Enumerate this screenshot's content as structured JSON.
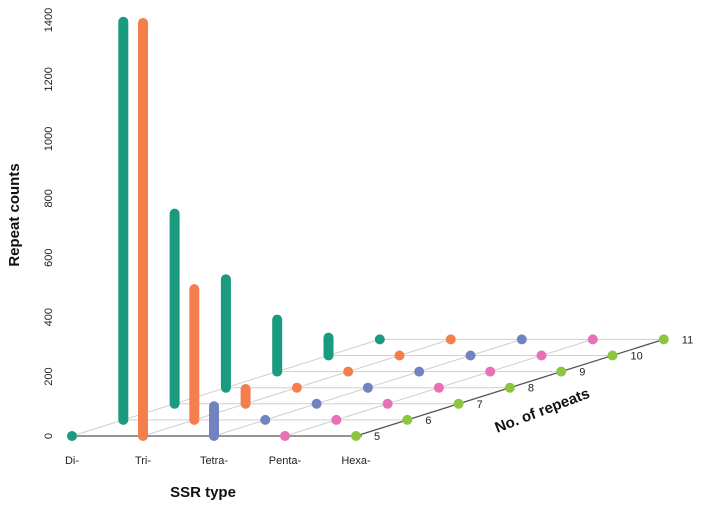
{
  "chart_data": {
    "type": "bar",
    "xlabel": "SSR type",
    "ylabel": "Repeat counts",
    "zlabel": "No. of repeats",
    "categories": [
      "Di-",
      "Tri-",
      "Tetra-",
      "Penta-",
      "Hexa-"
    ],
    "repeats": [
      5,
      6,
      7,
      8,
      9,
      10,
      11
    ],
    "yticks": [
      0,
      200,
      400,
      600,
      800,
      1000,
      1200,
      1400
    ],
    "ylim": [
      0,
      1400
    ],
    "grid": true,
    "colors": {
      "Di-": "#1a9a7e",
      "Tri-": "#f47f4c",
      "Tetra-": "#7382c0",
      "Penta-": "#e870b6",
      "Hexa-": "#8cc63f"
    },
    "bars": [
      {
        "ssr": "Di-",
        "repeat": 5,
        "value": 0
      },
      {
        "ssr": "Di-",
        "repeat": 6,
        "value": 1340
      },
      {
        "ssr": "Di-",
        "repeat": 7,
        "value": 640
      },
      {
        "ssr": "Di-",
        "repeat": 8,
        "value": 365
      },
      {
        "ssr": "Di-",
        "repeat": 9,
        "value": 175
      },
      {
        "ssr": "Di-",
        "repeat": 10,
        "value": 60
      },
      {
        "ssr": "Di-",
        "repeat": 11,
        "value": 0
      },
      {
        "ssr": "Tri-",
        "repeat": 5,
        "value": 1390
      },
      {
        "ssr": "Tri-",
        "repeat": 6,
        "value": 440
      },
      {
        "ssr": "Tri-",
        "repeat": 7,
        "value": 50
      },
      {
        "ssr": "Tri-",
        "repeat": 8,
        "value": 0
      },
      {
        "ssr": "Tri-",
        "repeat": 9,
        "value": 0
      },
      {
        "ssr": "Tri-",
        "repeat": 10,
        "value": 0
      },
      {
        "ssr": "Tri-",
        "repeat": 11,
        "value": 0
      },
      {
        "ssr": "Tetra-",
        "repeat": 5,
        "value": 100
      },
      {
        "ssr": "Tetra-",
        "repeat": 6,
        "value": 0
      },
      {
        "ssr": "Tetra-",
        "repeat": 7,
        "value": 0
      },
      {
        "ssr": "Tetra-",
        "repeat": 8,
        "value": 0
      },
      {
        "ssr": "Tetra-",
        "repeat": 9,
        "value": 0
      },
      {
        "ssr": "Tetra-",
        "repeat": 10,
        "value": 0
      },
      {
        "ssr": "Tetra-",
        "repeat": 11,
        "value": 0
      },
      {
        "ssr": "Penta-",
        "repeat": 5,
        "value": 0
      },
      {
        "ssr": "Penta-",
        "repeat": 6,
        "value": 0
      },
      {
        "ssr": "Penta-",
        "repeat": 7,
        "value": 0
      },
      {
        "ssr": "Penta-",
        "repeat": 8,
        "value": 0
      },
      {
        "ssr": "Penta-",
        "repeat": 9,
        "value": 0
      },
      {
        "ssr": "Penta-",
        "repeat": 10,
        "value": 0
      },
      {
        "ssr": "Penta-",
        "repeat": 11,
        "value": 0
      },
      {
        "ssr": "Hexa-",
        "repeat": 5,
        "value": 0
      },
      {
        "ssr": "Hexa-",
        "repeat": 6,
        "value": 0
      },
      {
        "ssr": "Hexa-",
        "repeat": 7,
        "value": 0
      },
      {
        "ssr": "Hexa-",
        "repeat": 8,
        "value": 0
      },
      {
        "ssr": "Hexa-",
        "repeat": 9,
        "value": 0
      },
      {
        "ssr": "Hexa-",
        "repeat": 10,
        "value": 0
      },
      {
        "ssr": "Hexa-",
        "repeat": 11,
        "value": 0
      }
    ]
  }
}
